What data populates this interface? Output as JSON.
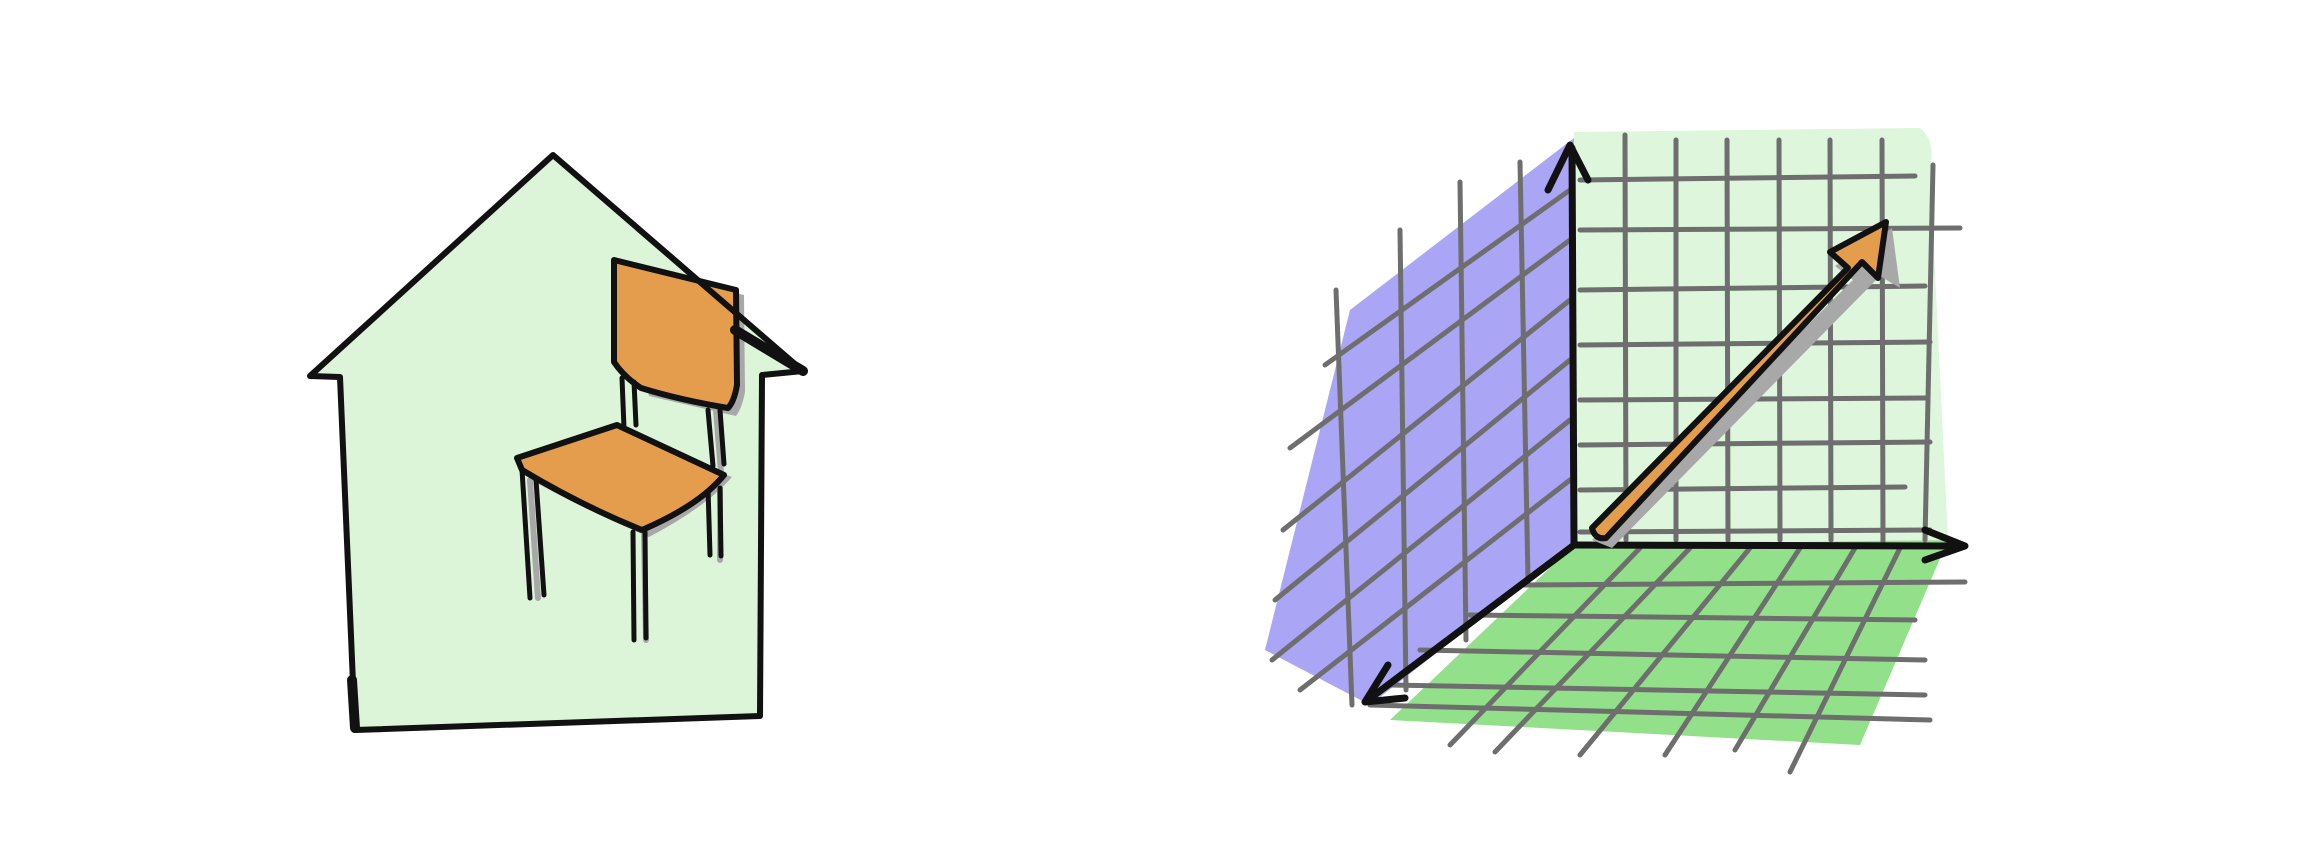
{
  "colors": {
    "background": "#ffffff",
    "house_fill": "#dcf5d9",
    "chair_fill": "#e39d4c",
    "back_plane": "#ddf6dc",
    "side_plane": "#aaa5f5",
    "floor_plane": "#92e08a",
    "grid_line": "#6e6e6e",
    "outline": "#111111",
    "shadow": "#a8a8a8",
    "vector_fill": "#e39d4c"
  },
  "icons": {
    "left": "house-with-chair-icon",
    "right": "3d-coordinate-vector-icon"
  }
}
